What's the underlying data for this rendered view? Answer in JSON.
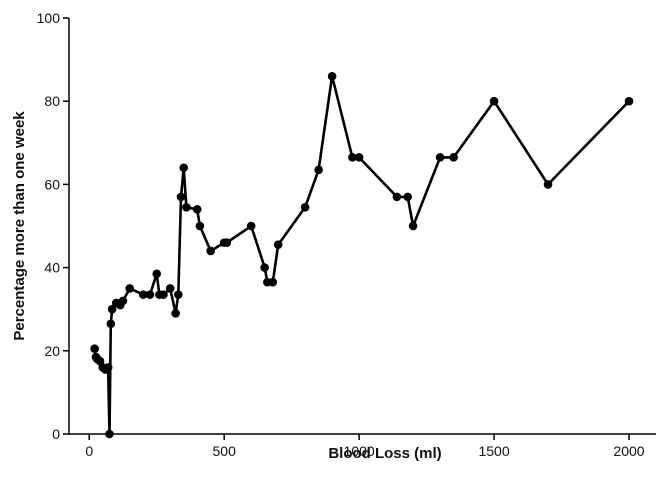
{
  "chart_data": {
    "type": "line",
    "xlabel": "Blood Loss (ml)",
    "ylabel": "Percentage more than one week",
    "xlim": [
      -75,
      2100
    ],
    "ylim": [
      0,
      100
    ],
    "x_ticks": [
      0,
      500,
      1000,
      1500,
      2000
    ],
    "y_ticks": [
      0,
      20,
      40,
      60,
      80,
      100
    ],
    "grid": false,
    "legend": "none",
    "line_color": "#000000",
    "series": [
      {
        "x": [
          20,
          25,
          30,
          40,
          50,
          60,
          70,
          75,
          80,
          85,
          100,
          115,
          125,
          150,
          200,
          225,
          250,
          260,
          275,
          300,
          320,
          330,
          340,
          350,
          360,
          400,
          410,
          450,
          500,
          510,
          600,
          650,
          660,
          680,
          700,
          800,
          850,
          900,
          975,
          1000,
          1140,
          1180,
          1200,
          1300,
          1350,
          1500,
          1700,
          2000
        ],
        "y": [
          20.5,
          18.5,
          18,
          17.5,
          16,
          15.5,
          16,
          0,
          26.5,
          30,
          31.5,
          31,
          32,
          35,
          33.5,
          33.5,
          38.5,
          33.5,
          33.5,
          35,
          29,
          33.5,
          57,
          64,
          54.5,
          54,
          50,
          44,
          46,
          46,
          50,
          40,
          36.5,
          36.5,
          45.5,
          54.5,
          63.5,
          86,
          66.5,
          66.5,
          57,
          57,
          50,
          66.5,
          66.5,
          80,
          60,
          80
        ]
      }
    ]
  }
}
